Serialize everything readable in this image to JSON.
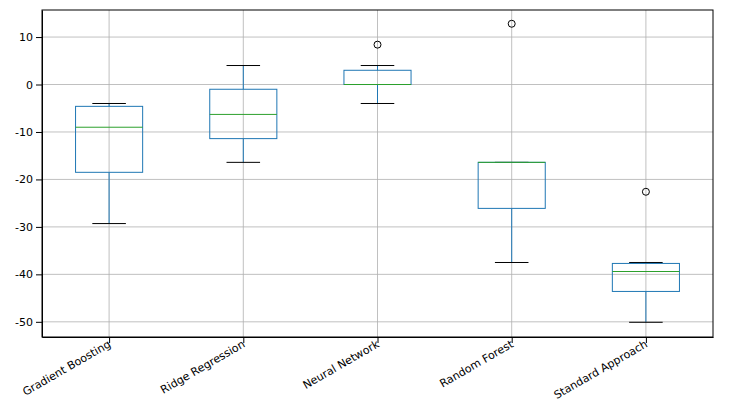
{
  "chart_data": {
    "type": "box",
    "categories": [
      "Gradient Boosting",
      "Ridge Regression",
      "Neural Network",
      "Random Forest",
      "Standard Approach"
    ],
    "boxes": [
      {
        "whisker_low": -29.3,
        "q1": -18.5,
        "median": -9.0,
        "q3": -4.6,
        "whisker_high": -4.0,
        "outliers": []
      },
      {
        "whisker_low": -16.4,
        "q1": -11.4,
        "median": -6.3,
        "q3": -1.0,
        "whisker_high": 4.0,
        "outliers": []
      },
      {
        "whisker_low": -4.0,
        "q1": 0.0,
        "median": 0.0,
        "q3": 3.0,
        "whisker_high": 4.0,
        "outliers": [
          8.4
        ]
      },
      {
        "whisker_low": -37.5,
        "q1": -26.1,
        "median": -16.4,
        "q3": -16.4,
        "whisker_high": -16.4,
        "outliers": [
          12.8
        ]
      },
      {
        "whisker_low": -50.1,
        "q1": -43.6,
        "median": -39.4,
        "q3": -37.7,
        "whisker_high": -37.5,
        "outliers": [
          -22.6
        ]
      }
    ],
    "color": "#1f77b4",
    "ylim": [
      -53.2,
      15.7
    ],
    "yticks": [
      -50,
      -40,
      -30,
      -20,
      -10,
      0,
      10
    ],
    "grid": true
  }
}
